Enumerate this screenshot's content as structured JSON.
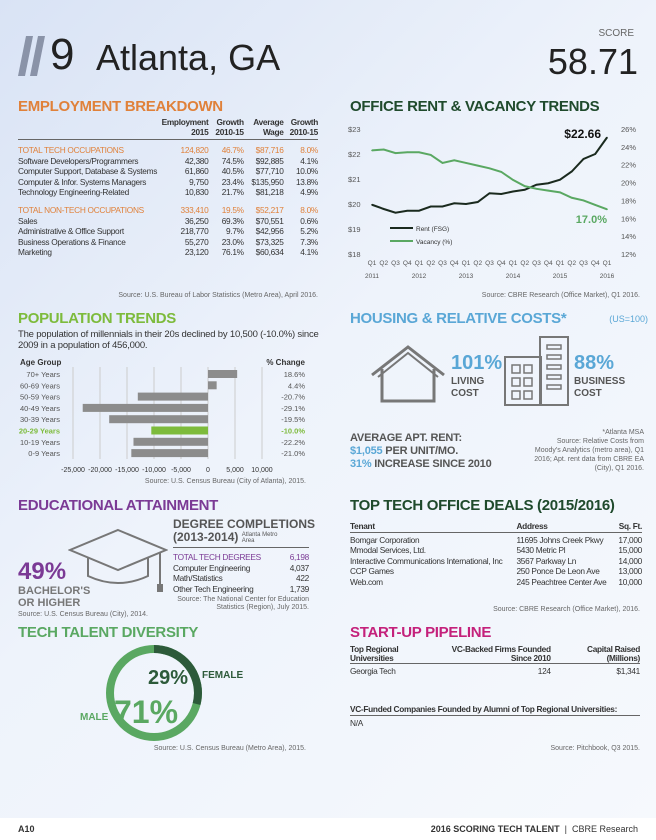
{
  "header": {
    "rank": "9",
    "city": "Atlanta, GA",
    "score_label": "SCORE",
    "score": "58.71"
  },
  "employment": {
    "title": "EMPLOYMENT BREAKDOWN",
    "columns": [
      "Employment 2015",
      "Growth 2010-15",
      "Average Wage",
      "Growth 2010-15"
    ],
    "groups": [
      {
        "total": [
          "TOTAL TECH OCCUPATIONS",
          "124,820",
          "46.7%",
          "$87,716",
          "8.0%"
        ],
        "rows": [
          [
            "Software Developers/Programmers",
            "42,380",
            "74.5%",
            "$92,885",
            "4.1%"
          ],
          [
            "Computer Support, Database & Systems",
            "61,860",
            "40.5%",
            "$77,710",
            "10.0%"
          ],
          [
            "Computer & Infor. Systems Managers",
            "9,750",
            "23.4%",
            "$135,950",
            "13.8%"
          ],
          [
            "Technology Engineering-Related",
            "10,830",
            "21.7%",
            "$81,218",
            "4.9%"
          ]
        ]
      },
      {
        "total": [
          "TOTAL NON-TECH OCCUPATIONS",
          "333,410",
          "19.5%",
          "$52,217",
          "8.0%"
        ],
        "rows": [
          [
            "Sales",
            "36,250",
            "69.3%",
            "$70,551",
            "0.6%"
          ],
          [
            "Administrative & Office Support",
            "218,770",
            "9.7%",
            "$42,956",
            "5.2%"
          ],
          [
            "Business Operations & Finance",
            "55,270",
            "23.0%",
            "$73,325",
            "7.3%"
          ],
          [
            "Marketing",
            "23,120",
            "76.1%",
            "$60,634",
            "4.1%"
          ]
        ]
      }
    ],
    "source": "Source: U.S. Bureau of Labor Statistics (Metro Area), April 2016."
  },
  "population": {
    "title": "POPULATION TRENDS",
    "text": "The population of millennials in their 20s declined by 10,500 (-10.0%) since 2009 in a population of 456,000.",
    "source": "Source: U.S. Census Bureau (City of Atlanta), 2015."
  },
  "education": {
    "title": "EDUCATIONAL ATTAINMENT",
    "pct": "49%",
    "line1": "BACHELOR'S",
    "line2": "OR HIGHER",
    "source1": "Source: U.S. Census Bureau (City), 2014.",
    "degrees_title": "DEGREE COMPLETIONS",
    "degrees_years": "(2013-2014)",
    "degrees_note": "Atlanta Metro Area",
    "rows": [
      [
        "TOTAL TECH DEGREES",
        "6,198"
      ],
      [
        "Computer Engineering",
        "4,037"
      ],
      [
        "Math/Statistics",
        "422"
      ],
      [
        "Other Tech Engineering",
        "1,739"
      ]
    ],
    "source2": "Source: The National Center for Education Statistics (Region), July 2015."
  },
  "diversity": {
    "title": "TECH TALENT DIVERSITY",
    "female_pct": "29%",
    "female_label": "FEMALE",
    "male_pct": "71%",
    "male_label": "MALE",
    "female_share": 29,
    "colors": {
      "female": "#2d5a3a",
      "male": "#5aa862"
    },
    "source": "Source: U.S. Census Bureau (Metro Area), 2015."
  },
  "rent": {
    "title": "OFFICE RENT & VACANCY TRENDS",
    "end_rent": "$22.66",
    "end_vacancy": "17.0%",
    "source": "Source: CBRE Research (Office Market), Q1 2016."
  },
  "housing": {
    "title": "HOUSING & RELATIVE COSTS*",
    "index": "(US=100)",
    "living_pct": "101%",
    "living_l1": "LIVING",
    "living_l2": "COST",
    "business_pct": "88%",
    "business_l1": "BUSINESS",
    "business_l2": "COST",
    "rent_label": "AVERAGE APT. RENT:",
    "rent_value": "$1,055",
    "rent_unit": " PER UNIT/MO.",
    "increase_value": "31%",
    "increase_text": " INCREASE SINCE 2010",
    "note": "*Atlanta MSA",
    "source": "Source: Relative Costs from Moody's Analytics (metro area), Q1 2016; Apt. rent data from CBRE EA (City), Q1 2016."
  },
  "deals": {
    "title": "TOP TECH OFFICE DEALS (2015/2016)",
    "columns": [
      "Tenant",
      "Address",
      "Sq. Ft."
    ],
    "rows": [
      [
        "Bomgar Corporation",
        "11695 Johns Creek Pkwy",
        "17,000"
      ],
      [
        "Mmodal Services, Ltd.",
        "5430 Metric Pl",
        "15,000"
      ],
      [
        "Interactive Communications International, Inc",
        "3567 Parkway Ln",
        "14,000"
      ],
      [
        "CCP Games",
        "250 Ponce De Leon Ave",
        "13,000"
      ],
      [
        "Web.com",
        "245 Peachtree Center Ave",
        "10,000"
      ]
    ],
    "source": "Source: CBRE Research (Office Market), 2016."
  },
  "startup": {
    "title": "START-UP PIPELINE",
    "columns": [
      "Top Regional Universities",
      "VC-Backed Firms Founded Since 2010",
      "Capital Raised (Millions)"
    ],
    "rows": [
      [
        "Georgia Tech",
        "124",
        "$1,341"
      ]
    ],
    "vc_title": "VC-Funded Companies Founded by Alumni of Top Regional Universities:",
    "vc_value": "N/A",
    "source": "Source: Pitchbook, Q3 2015."
  },
  "footer": {
    "page": "A10",
    "title": "2016 SCORING TECH TALENT",
    "brand": "CBRE Research"
  },
  "colors": {
    "employment": "#e0813a",
    "rent": "#1f4a2c",
    "population": "#7dbb3c",
    "housing": "#5aa7d6",
    "education": "#7b3a95",
    "diversity": "#5aa862",
    "deals": "#1f4a2c",
    "startup": "#c4217b"
  },
  "chart_data": [
    {
      "type": "line",
      "title": "OFFICE RENT & VACANCY TRENDS",
      "x": [
        "Q1",
        "Q2",
        "Q3",
        "Q4",
        "Q1",
        "Q2",
        "Q3",
        "Q4",
        "Q1",
        "Q2",
        "Q3",
        "Q4",
        "Q1",
        "Q2",
        "Q3",
        "Q4",
        "Q1",
        "Q2",
        "Q3",
        "Q4",
        "Q1"
      ],
      "years": [
        "2011",
        "2012",
        "2013",
        "2014",
        "2015",
        "2016"
      ],
      "y_left": {
        "ticks": [
          "$18",
          "$19",
          "$20",
          "$21",
          "$22",
          "$23"
        ],
        "range": [
          18,
          23
        ]
      },
      "y_right": {
        "ticks": [
          "12%",
          "14%",
          "16%",
          "18%",
          "20%",
          "22%",
          "24%",
          "26%"
        ],
        "range": [
          12,
          26
        ]
      },
      "series": [
        {
          "name": "Rent (FSG)",
          "axis": "left",
          "color": "#1a2a1e",
          "values": [
            19.97,
            19.8,
            19.65,
            19.73,
            19.73,
            19.9,
            19.9,
            20.03,
            20.0,
            20.08,
            20.43,
            20.4,
            20.5,
            20.57,
            20.77,
            20.83,
            20.97,
            21.3,
            21.8,
            22.0,
            22.66
          ]
        },
        {
          "name": "Vacancy (%)",
          "axis": "right",
          "color": "#5aa862",
          "values": [
            23.6,
            23.7,
            23.3,
            23.4,
            23.4,
            23.1,
            22.2,
            22.5,
            22.2,
            21.9,
            21.6,
            21.2,
            20.3,
            19.6,
            19.3,
            19.1,
            18.9,
            18.3,
            18.0,
            17.5,
            17.0
          ]
        }
      ]
    },
    {
      "type": "bar",
      "orientation": "horizontal",
      "xlabel_left": "Age Group",
      "xlabel_right": "% Change",
      "categories": [
        "70+ Years",
        "60-69 Years",
        "50-59 Years",
        "40-49 Years",
        "30-39 Years",
        "20-29 Years",
        "10-19 Years",
        "0-9 Years"
      ],
      "values": [
        5400,
        1600,
        -13000,
        -23200,
        -18300,
        -10500,
        -13800,
        -14200
      ],
      "pct_change": [
        "18.6%",
        "4.4%",
        "-20.7%",
        "-29.1%",
        "-19.5%",
        "-10.0%",
        "-22.2%",
        "-21.0%"
      ],
      "highlight": "20-29 Years",
      "bar_color": "#8c8c8c",
      "highlight_color": "#7dbb3c",
      "xlim": [
        -25000,
        10000
      ],
      "xticks": [
        "-25,000",
        "-20,000",
        "-15,000",
        "-10,000",
        "-5,000",
        "0",
        "5,000",
        "10,000"
      ],
      "grid": true
    }
  ]
}
